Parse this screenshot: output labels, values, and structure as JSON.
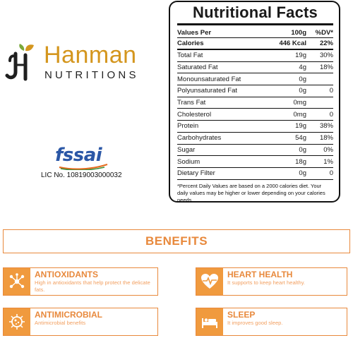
{
  "brand": {
    "name": "Hanman",
    "subtitle": "NUTRITIONS",
    "colors": {
      "gold": "#d4961e",
      "dark": "#222222",
      "orange": "#e8893c"
    }
  },
  "certification": {
    "logo_text": "fssai",
    "license": "LIC No. 10819003000032"
  },
  "nutrition": {
    "title": "Nutritional Facts",
    "header": {
      "name": "Values Per",
      "value": "100g",
      "dv": "%DV*"
    },
    "calories": {
      "name": "Calories",
      "value": "446 Kcal",
      "dv": "22%"
    },
    "rows": [
      {
        "name": "Total Fat",
        "value": "19g",
        "dv": "30%"
      },
      {
        "name": "Saturated Fat",
        "value": "4g",
        "dv": "18%"
      },
      {
        "name": "Monounsaturated Fat",
        "value": "0g",
        "dv": ""
      },
      {
        "name": "Polyunsaturated Fat",
        "value": "0g",
        "dv": "0"
      },
      {
        "name": "Trans Fat",
        "value": "0mg",
        "dv": ""
      },
      {
        "name": "Cholesterol",
        "value": "0mg",
        "dv": "0"
      },
      {
        "name": "Protein",
        "value": "19g",
        "dv": "38%"
      },
      {
        "name": "Carbohydrates",
        "value": "54g",
        "dv": "18%"
      },
      {
        "name": "Sugar",
        "value": "0g",
        "dv": "0%"
      },
      {
        "name": "Sodium",
        "value": "18g",
        "dv": "1%"
      },
      {
        "name": "Dietary Filter",
        "value": "0g",
        "dv": "0"
      }
    ],
    "footnote": "*Percent Daily Values are based on a 2000 calories diet. Your daily values may be higher or lower depending on your calories needs."
  },
  "benefits": {
    "title": "BENEFITS",
    "cards": [
      {
        "icon": "molecule-icon",
        "title": "ANTIOXIDANTS",
        "text": "High in antioxidants that help protect the delicate fats."
      },
      {
        "icon": "heartbeat-icon",
        "title": "HEART HEALTH",
        "text": "It supports to keep heart healthy."
      },
      {
        "icon": "microbe-icon",
        "title": "ANTIMICROBIAL",
        "text": "Antimicrobial benefits"
      },
      {
        "icon": "bed-icon",
        "title": "SLEEP",
        "text": "It improves good sleep."
      }
    ]
  }
}
